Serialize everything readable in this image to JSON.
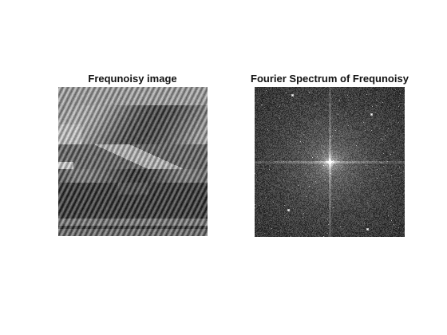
{
  "figure": {
    "background": "#ffffff",
    "panels": [
      {
        "title": "Frequnoisy image",
        "content": "grayscale-photo-with-diagonal-stripe-noise"
      },
      {
        "title": "Fourier Spectrum of Frequnoisy",
        "content": "log-magnitude-spectrum-centered"
      }
    ]
  }
}
